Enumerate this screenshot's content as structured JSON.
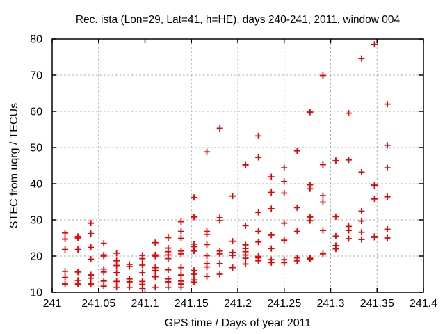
{
  "title": "Rec. ista (Lon=29, Lat=41, h=HE), days 240-241, 2011, window 004",
  "style": {
    "marker_color": "#ee0000",
    "grid_color": "#a8a8a8",
    "frame_color": "#000000",
    "text_color": "#000000",
    "background": "#ffffff"
  },
  "chart_data": {
    "type": "scatter",
    "title": "Rec. ista (Lon=29, Lat=41, h=HE), days 240-241, 2011, window 004",
    "xlabel": "GPS time / Days of year 2011",
    "ylabel": "STEC from uqrg / TECUs",
    "xlim": [
      241,
      241.4
    ],
    "ylim": [
      10,
      80
    ],
    "xticks": [
      241,
      241.05,
      241.1,
      241.15,
      241.2,
      241.25,
      241.3,
      241.35,
      241.4
    ],
    "xtick_labels": [
      "241",
      "241.05",
      "241.1",
      "241.15",
      "241.2",
      "241.25",
      "241.3",
      "241.35",
      "241.4"
    ],
    "yticks": [
      10,
      20,
      30,
      40,
      50,
      60,
      70,
      80
    ],
    "ytick_labels": [
      "10",
      "20",
      "30",
      "40",
      "50",
      "60",
      "70",
      "80"
    ],
    "grid": true,
    "legend": "none",
    "marker": {
      "shape": "plus",
      "color": "#ee0000",
      "size": 9
    },
    "series": [
      {
        "name": "STEC",
        "points_by_epoch": [
          {
            "t": 241.0139,
            "stec": [
              26.4,
              24.7,
              21.8,
              15.8,
              14.1,
              12.3
            ]
          },
          {
            "t": 241.0278,
            "stec": [
              25.4,
              25.0,
              21.8,
              15.6,
              13.3,
              12.3
            ]
          },
          {
            "t": 241.0417,
            "stec": [
              29.1,
              26.2,
              22.4,
              19.1,
              14.8,
              13.9,
              12.3
            ]
          },
          {
            "t": 241.0556,
            "stec": [
              23.5,
              20.3,
              20.0,
              16.4,
              15.6,
              13.1,
              11.7
            ]
          },
          {
            "t": 241.0694,
            "stec": [
              20.8,
              18.7,
              17.4,
              15.4,
              13.0,
              11.4
            ]
          },
          {
            "t": 241.0833,
            "stec": [
              17.7,
              17.1,
              13.7,
              12.9,
              11.4
            ]
          },
          {
            "t": 241.0972,
            "stec": [
              20.2,
              19.3,
              17.5,
              15.4,
              13.0,
              12.2,
              11.0
            ]
          },
          {
            "t": 241.1111,
            "stec": [
              23.7,
              20.3,
              20.0,
              16.8,
              16.0,
              14.3,
              11.4
            ]
          },
          {
            "t": 241.125,
            "stec": [
              25.1,
              22.2,
              21.2,
              20.3,
              19.3,
              16.2,
              13.7,
              12.9,
              11.4
            ]
          },
          {
            "t": 241.1389,
            "stec": [
              29.5,
              26.8,
              24.9,
              21.4,
              20.6,
              16.8,
              14.8,
              13.1,
              12.3,
              11.4
            ]
          },
          {
            "t": 241.1528,
            "stec": [
              36.2,
              30.8,
              23.3,
              22.6,
              21.4,
              16.0,
              15.0,
              13.4,
              12.8
            ]
          },
          {
            "t": 241.1667,
            "stec": [
              48.8,
              26.8,
              26.0,
              23.2,
              20.1,
              17.9,
              17.0,
              14.4
            ]
          },
          {
            "t": 241.1806,
            "stec": [
              55.3,
              30.6,
              29.8,
              21.4,
              20.6,
              17.9,
              15.0
            ]
          },
          {
            "t": 241.1944,
            "stec": [
              36.6,
              24.1,
              21.0,
              20.2,
              16.8
            ]
          },
          {
            "t": 241.2083,
            "stec": [
              45.2,
              28.4,
              23.1,
              22.1,
              21.2,
              20.3,
              19.4,
              17.8
            ]
          },
          {
            "t": 241.2222,
            "stec": [
              53.2,
              47.3,
              32.1,
              26.8,
              23.9,
              19.9,
              19.5,
              18.7
            ]
          },
          {
            "t": 241.2361,
            "stec": [
              41.9,
              37.6,
              33.1,
              25.8,
              22.1,
              19.0,
              18.2
            ]
          },
          {
            "t": 241.25,
            "stec": [
              44.4,
              40.6,
              37.4,
              29.1,
              24.4,
              19.0,
              18.2
            ]
          },
          {
            "t": 241.2639,
            "stec": [
              49.1,
              33.4,
              26.8,
              19.5,
              18.7
            ]
          },
          {
            "t": 241.2778,
            "stec": [
              59.8,
              39.7,
              38.6,
              30.8,
              29.8,
              19.4,
              19.2
            ]
          },
          {
            "t": 241.2917,
            "stec": [
              69.9,
              45.3,
              36.7,
              34.9,
              27.1,
              20.6
            ]
          },
          {
            "t": 241.3056,
            "stec": [
              46.4,
              30.9,
              25.5,
              22.9,
              22.0
            ]
          },
          {
            "t": 241.3194,
            "stec": [
              59.5,
              46.6,
              28.2,
              27.1,
              24.8
            ]
          },
          {
            "t": 241.3333,
            "stec": [
              74.6,
              43.2,
              32.4,
              29.7,
              26.6,
              24.6
            ]
          },
          {
            "t": 241.3472,
            "stec": [
              78.5,
              39.6,
              39.4,
              35.8,
              25.4,
              25.2
            ]
          },
          {
            "t": 241.3611,
            "stec": [
              62.0,
              50.6,
              44.4,
              36.4,
              27.4,
              25.0
            ]
          }
        ]
      }
    ]
  }
}
